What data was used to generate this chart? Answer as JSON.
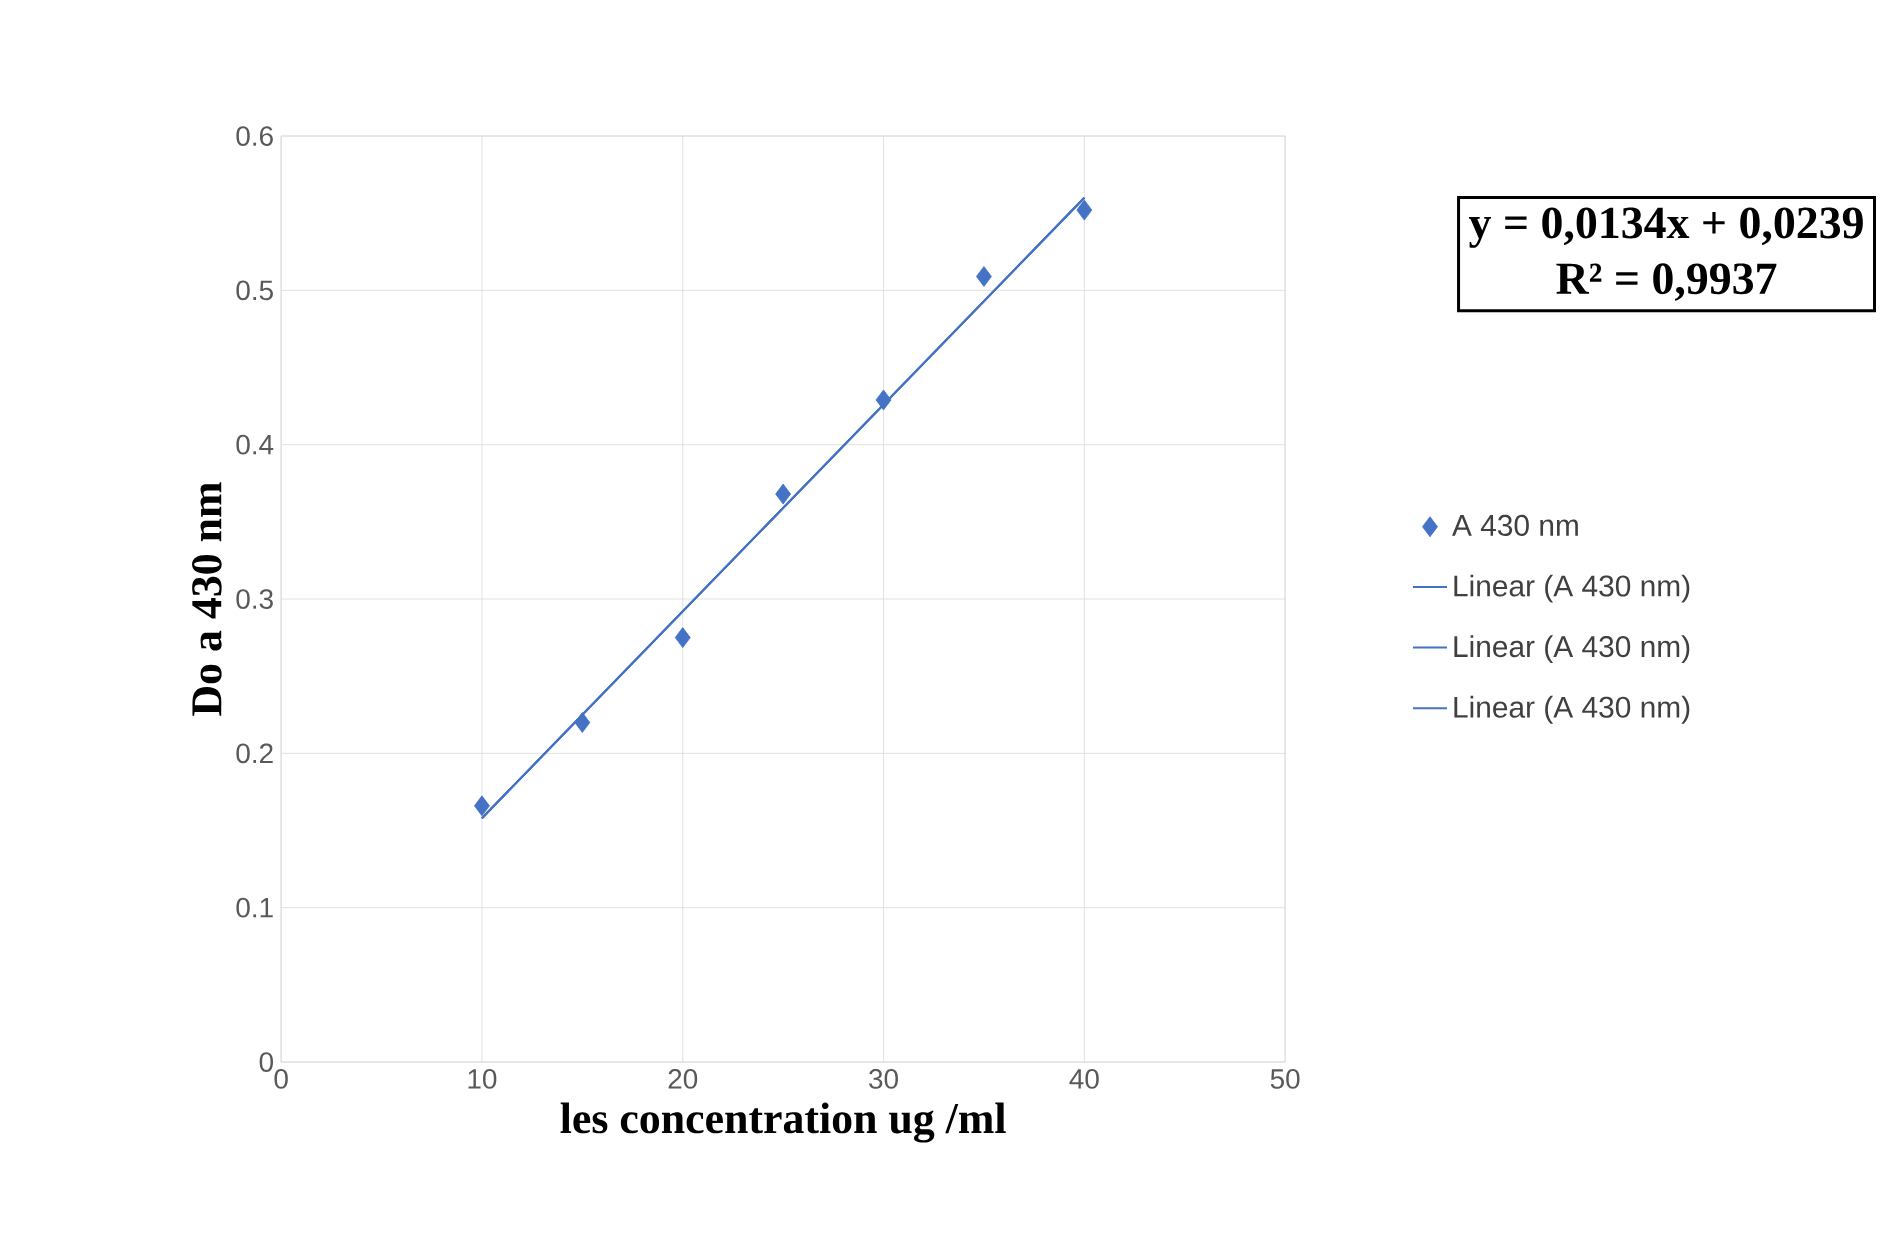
{
  "chart_data": {
    "type": "scatter",
    "xlabel": "les concentration ug /ml",
    "ylabel": "Do a 430 nm",
    "xlim": [
      0,
      50
    ],
    "ylim": [
      0,
      0.6
    ],
    "xticks": [
      0,
      10,
      20,
      30,
      40,
      50
    ],
    "yticks": [
      0,
      0.1,
      0.2,
      0.3,
      0.4,
      0.5,
      0.6
    ],
    "grid": true,
    "legend": "right",
    "annotations": [
      "y = 0,0134x + 0,0239",
      "R² = 0,9937"
    ],
    "series": [
      {
        "name": "A 430 nm",
        "type": "scatter",
        "marker": "diamond",
        "color": "#4472c4",
        "x": [
          10,
          15,
          20,
          25,
          30,
          35,
          40
        ],
        "values": [
          0.166,
          0.22,
          0.275,
          0.368,
          0.429,
          0.509,
          0.552
        ]
      },
      {
        "name": "Linear (A 430 nm)",
        "type": "line",
        "line_style": "solid",
        "color": "#4472c4",
        "x": [
          10,
          40
        ],
        "values": [
          0.158,
          0.56
        ]
      },
      {
        "name": "Linear (A 430 nm)",
        "type": "line",
        "line_style": "solid",
        "color": "#4472c4",
        "x": [
          10,
          40
        ],
        "values": [
          0.158,
          0.56
        ]
      },
      {
        "name": "Linear (A 430 nm)",
        "type": "line",
        "line_style": "solid",
        "color": "#4472c4",
        "x": [
          10,
          40
        ],
        "values": [
          0.158,
          0.56
        ]
      }
    ]
  }
}
